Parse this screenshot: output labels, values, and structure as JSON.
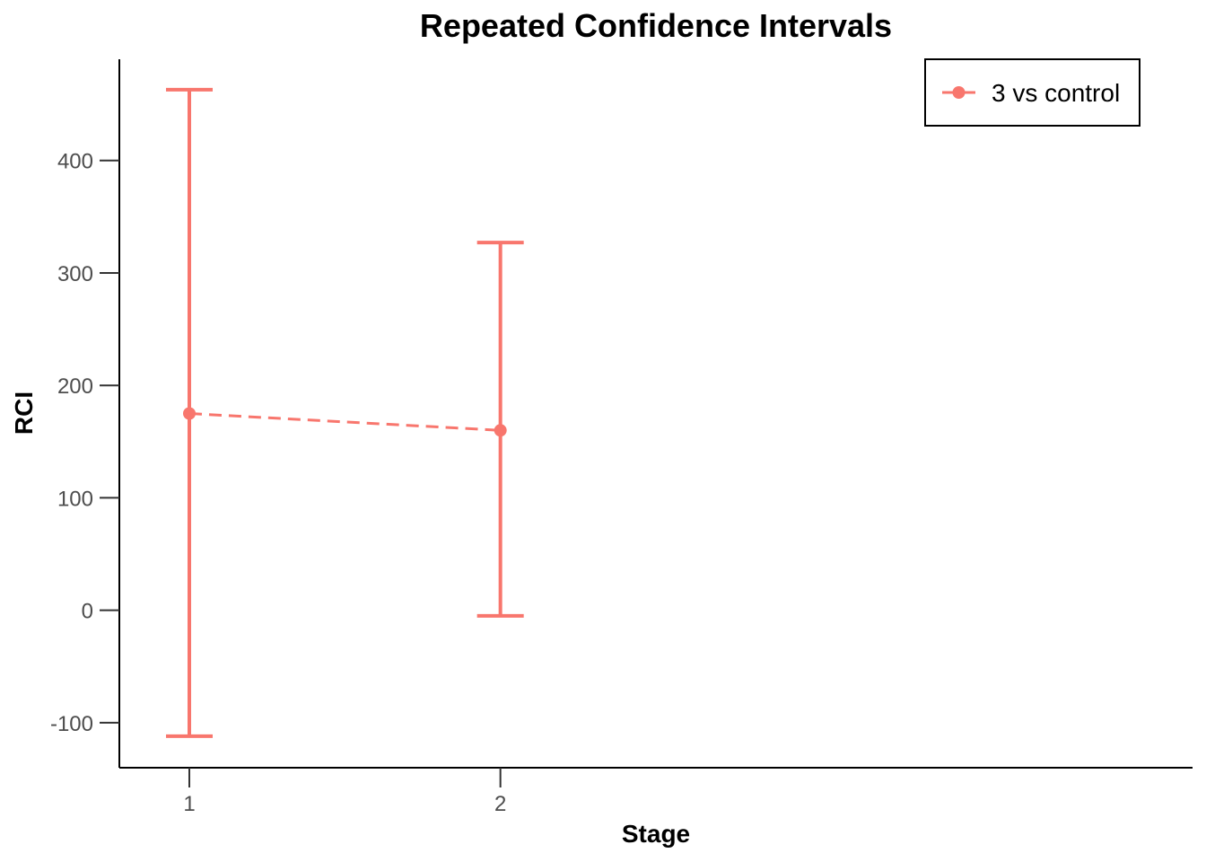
{
  "chart_data": {
    "type": "line",
    "title": "Repeated Confidence Intervals",
    "xlabel": "Stage",
    "ylabel": "RCI",
    "x_ticks": [
      "1",
      "2"
    ],
    "y_ticks": [
      "-100",
      "0",
      "100",
      "200",
      "300",
      "400"
    ],
    "xlim": [
      0.775,
      4.225
    ],
    "ylim": [
      -140,
      490
    ],
    "grid": false,
    "legend_position": "top-right",
    "series": [
      {
        "name": "3 vs control",
        "color": "#F8766D",
        "x": [
          1,
          2
        ],
        "y": [
          175,
          160
        ],
        "lower": [
          -112,
          -5
        ],
        "upper": [
          463,
          327
        ]
      }
    ]
  }
}
